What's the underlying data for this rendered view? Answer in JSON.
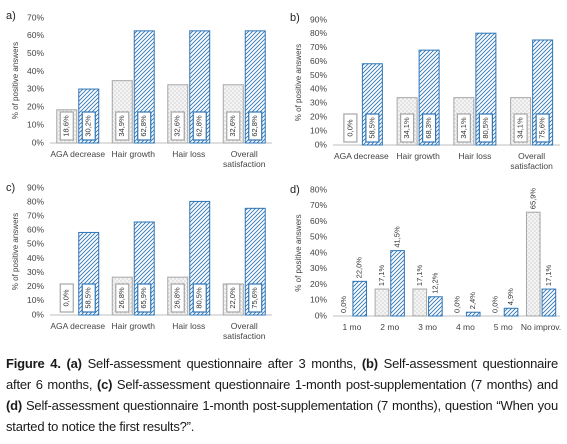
{
  "chart_data": [
    {
      "type": "bar",
      "panel_label": "a)",
      "y_label": "% of positive answers",
      "value_label_style": "box",
      "categories": [
        "AGA decrease",
        "Hair growth",
        "Hair loss",
        "Overall satisfaction"
      ],
      "series": [
        {
          "color": "#a6a6a6",
          "pattern": "dots",
          "values": [
            18.6,
            34.9,
            32.6,
            32.6
          ],
          "value_labels": [
            "18,6%",
            "34,9%",
            "32,6%",
            "32,6%"
          ]
        },
        {
          "color": "#2e75b6",
          "pattern": "hatch",
          "values": [
            30.2,
            62.8,
            62.8,
            62.8
          ],
          "value_labels": [
            "30,2%",
            "62,8%",
            "62,8%",
            "62,8%"
          ]
        }
      ],
      "ylim": [
        0,
        70
      ],
      "yticks": [
        {
          "value": 0,
          "label": "0%"
        },
        {
          "value": 10,
          "label": "10%"
        },
        {
          "value": 20,
          "label": "20%"
        },
        {
          "value": 30,
          "label": "30%"
        },
        {
          "value": 40,
          "label": "40%"
        },
        {
          "value": 50,
          "label": "50%"
        },
        {
          "value": 60,
          "label": "60%"
        },
        {
          "value": 70,
          "label": "70%"
        }
      ]
    },
    {
      "type": "bar",
      "panel_label": "b)",
      "y_label": "% of positive answers",
      "value_label_style": "box",
      "categories": [
        "AGA decrease",
        "Hair growth",
        "Hair loss",
        "Overall satisfaction"
      ],
      "series": [
        {
          "color": "#a6a6a6",
          "pattern": "dots",
          "values": [
            0.0,
            34.1,
            34.1,
            34.1
          ],
          "value_labels": [
            "0,0%",
            "34,1%",
            "34,1%",
            "34,1%"
          ]
        },
        {
          "color": "#2e75b6",
          "pattern": "hatch",
          "values": [
            58.5,
            68.3,
            80.5,
            75.6
          ],
          "value_labels": [
            "58,5%",
            "68,3%",
            "80,5%",
            "75,6%"
          ]
        }
      ],
      "ylim": [
        0,
        90
      ],
      "yticks": [
        {
          "value": 0,
          "label": "0%"
        },
        {
          "value": 10,
          "label": "10%"
        },
        {
          "value": 20,
          "label": "20%"
        },
        {
          "value": 30,
          "label": "30%"
        },
        {
          "value": 40,
          "label": "40%"
        },
        {
          "value": 50,
          "label": "50%"
        },
        {
          "value": 60,
          "label": "60%"
        },
        {
          "value": 70,
          "label": "70%"
        },
        {
          "value": 80,
          "label": "80%"
        },
        {
          "value": 90,
          "label": "90%"
        }
      ]
    },
    {
      "type": "bar",
      "panel_label": "c)",
      "y_label": "% of positive answers",
      "value_label_style": "box",
      "categories": [
        "AGA decrease",
        "Hair growth",
        "Hair loss",
        "Overall satisfaction"
      ],
      "series": [
        {
          "color": "#a6a6a6",
          "pattern": "dots",
          "values": [
            0.0,
            26.8,
            26.8,
            22.0
          ],
          "value_labels": [
            "0,0%",
            "26,8%",
            "26,8%",
            "22,0%"
          ]
        },
        {
          "color": "#2e75b6",
          "pattern": "hatch",
          "values": [
            58.5,
            65.9,
            80.5,
            75.6
          ],
          "value_labels": [
            "58,5%",
            "65,9%",
            "80,5%",
            "75,6%"
          ]
        }
      ],
      "ylim": [
        0,
        90
      ],
      "yticks": [
        {
          "value": 0,
          "label": "0%"
        },
        {
          "value": 10,
          "label": "10%"
        },
        {
          "value": 20,
          "label": "20%"
        },
        {
          "value": 30,
          "label": "30%"
        },
        {
          "value": 40,
          "label": "40%"
        },
        {
          "value": 50,
          "label": "50%"
        },
        {
          "value": 60,
          "label": "60%"
        },
        {
          "value": 70,
          "label": "70%"
        },
        {
          "value": 80,
          "label": "80%"
        },
        {
          "value": 90,
          "label": "90%"
        }
      ]
    },
    {
      "type": "bar",
      "panel_label": "d)",
      "y_label": "% of positive answers",
      "value_label_style": "above",
      "categories": [
        "1 mo",
        "2 mo",
        "3 mo",
        "4 mo",
        "5 mo",
        "No improv."
      ],
      "series": [
        {
          "color": "#a6a6a6",
          "pattern": "dots",
          "values": [
            0.0,
            17.1,
            17.1,
            0.0,
            0.0,
            65.9
          ],
          "value_labels": [
            "0,0%",
            "17,1%",
            "17,1%",
            "0,0%",
            "0,0%",
            "65,9%"
          ]
        },
        {
          "color": "#2e75b6",
          "pattern": "hatch",
          "values": [
            22.0,
            41.5,
            12.2,
            2.4,
            4.9,
            17.1
          ],
          "value_labels": [
            "22,0%",
            "41,5%",
            "12,2%",
            "2,4%",
            "4,9%",
            "17,1%"
          ]
        }
      ],
      "ylim": [
        0,
        80
      ],
      "yticks": [
        {
          "value": 0,
          "label": "0%"
        },
        {
          "value": 10,
          "label": "10%"
        },
        {
          "value": 20,
          "label": "20%"
        },
        {
          "value": 30,
          "label": "30%"
        },
        {
          "value": 40,
          "label": "40%"
        },
        {
          "value": 50,
          "label": "50%"
        },
        {
          "value": 60,
          "label": "60%"
        },
        {
          "value": 70,
          "label": "70%"
        },
        {
          "value": 80,
          "label": "80%"
        }
      ]
    }
  ],
  "caption": {
    "parts": [
      {
        "text": "Figure 4.",
        "bold": true
      },
      {
        "text": " (a)",
        "bold": true
      },
      {
        "text": " Self-assessment questionnaire after 3 months, ",
        "bold": false
      },
      {
        "text": "(b)",
        "bold": true
      },
      {
        "text": " Self-assessment questionnaire after 6 months, ",
        "bold": false
      },
      {
        "text": "(c)",
        "bold": true
      },
      {
        "text": " Self-assessment questionnaire 1-month post-supplementation (7 months) and ",
        "bold": false
      },
      {
        "text": "(d)",
        "bold": true
      },
      {
        "text": " Self-assessment questionnaire 1-month post-supplementation (7 months), question “When you started to notice the first results?”.",
        "bold": false
      }
    ]
  }
}
